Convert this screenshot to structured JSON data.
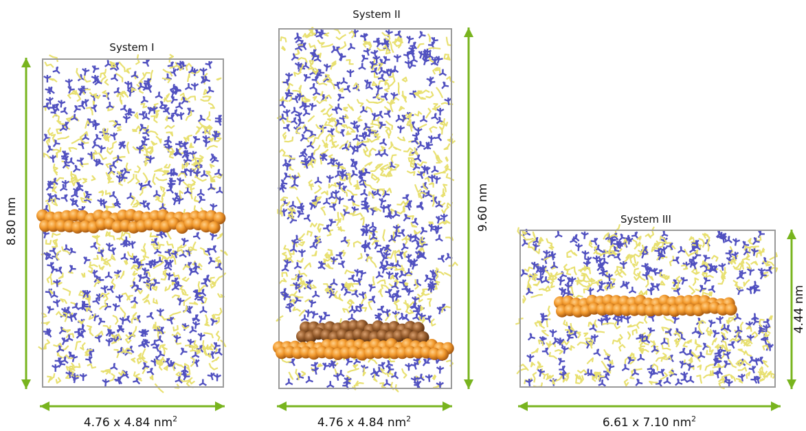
{
  "systems": [
    {
      "title": "System I",
      "height_label": "8.80 nm",
      "area_label": {
        "base": "4.76 x 4.84 nm",
        "sup": "2"
      }
    },
    {
      "title": "System II",
      "height_label": "9.60 nm",
      "area_label": {
        "base": "4.76 x 4.84 nm",
        "sup": "2"
      }
    },
    {
      "title": "System III",
      "height_label": "4.44 nm",
      "area_label": {
        "base": "6.61 x 7.10 nm",
        "sup": "2"
      }
    }
  ]
}
